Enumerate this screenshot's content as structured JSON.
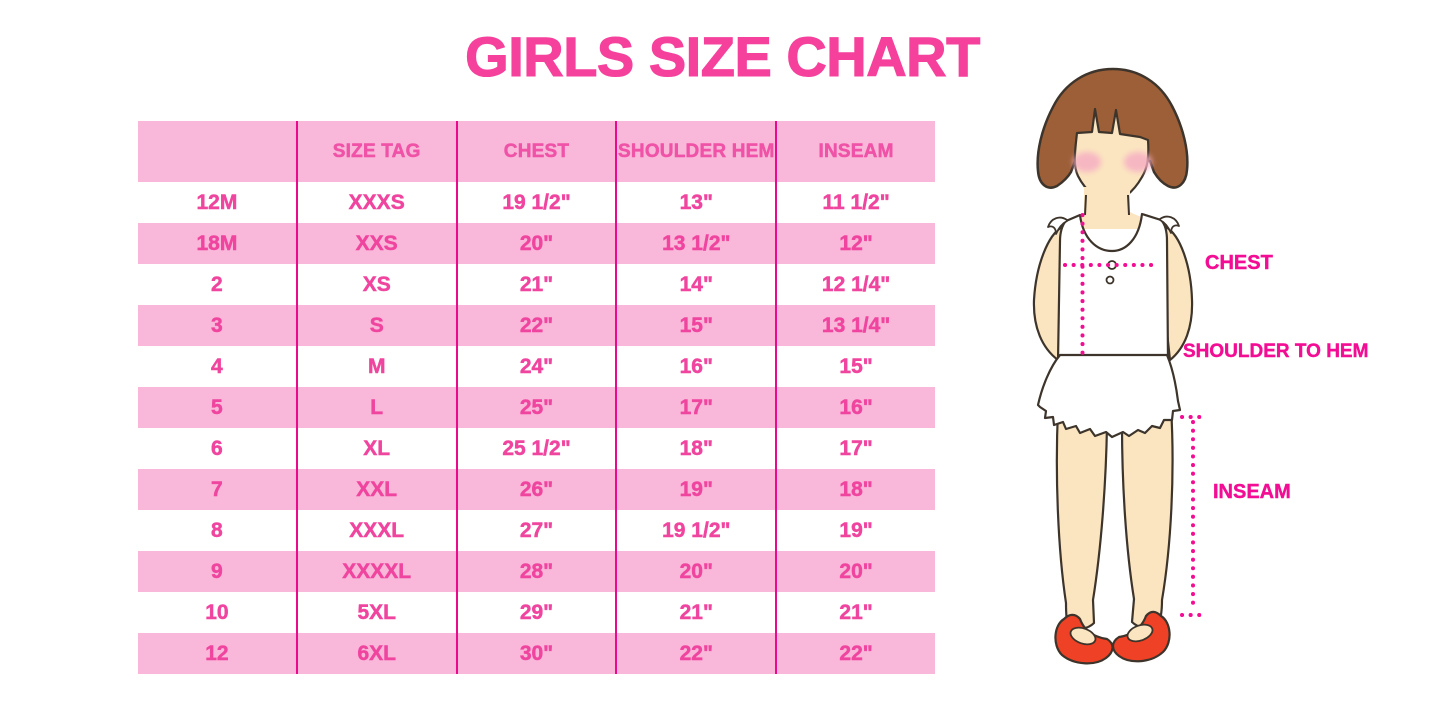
{
  "title": "GIRLS SIZE CHART",
  "table": {
    "headers": [
      "",
      "SIZE TAG",
      "CHEST",
      "SHOULDER HEM",
      "INSEAM"
    ],
    "rows": [
      [
        "12M",
        "XXXS",
        "19 1/2\"",
        "13\"",
        "11 1/2\""
      ],
      [
        "18M",
        "XXS",
        "20\"",
        "13 1/2\"",
        "12\""
      ],
      [
        "2",
        "XS",
        "21\"",
        "14\"",
        "12 1/4\""
      ],
      [
        "3",
        "S",
        "22\"",
        "15\"",
        "13 1/4\""
      ],
      [
        "4",
        "M",
        "24\"",
        "16\"",
        "15\""
      ],
      [
        "5",
        "L",
        "25\"",
        "17\"",
        "16\""
      ],
      [
        "6",
        "XL",
        "25 1/2\"",
        "18\"",
        "17\""
      ],
      [
        "7",
        "XXL",
        "26\"",
        "19\"",
        "18\""
      ],
      [
        "8",
        "XXXL",
        "27\"",
        "19 1/2\"",
        "19\""
      ],
      [
        "9",
        "XXXXL",
        "28\"",
        "20\"",
        "20\""
      ],
      [
        "10",
        "5XL",
        "29\"",
        "21\"",
        "21\""
      ],
      [
        "12",
        "6XL",
        "30\"",
        "22\"",
        "22\""
      ]
    ]
  },
  "diagram": {
    "chest_label": "CHEST",
    "shoulder_to_hem_label": "SHOULDER TO HEM",
    "inseam_label": "INSEAM"
  },
  "colors": {
    "title_pink": "#F5419C",
    "row_band_pink": "#F9B7D9",
    "column_line_magenta": "#E90B8B",
    "cell_text_pink": "#F0459F",
    "measure_label_pink": "#F30D94",
    "dotted_line_pink": "#F20D93",
    "hair_brown": "#9C5F38",
    "skin": "#FBE5C0",
    "blush_pink": "#F6AEC3",
    "shoe_red": "#EF4126",
    "outline_dark": "#3D342B"
  }
}
